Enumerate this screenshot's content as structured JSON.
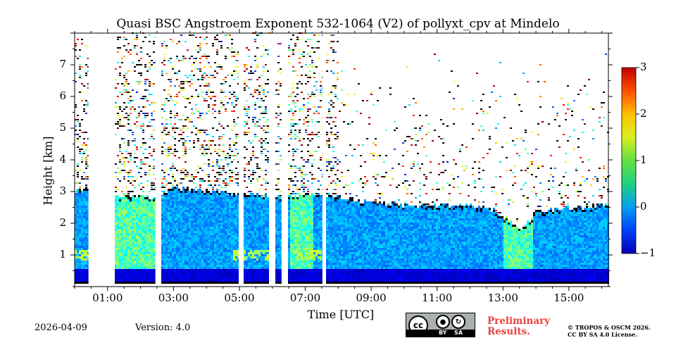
{
  "chart_data": {
    "type": "heatmap",
    "title": "Quasi BSC Angstroem Exponent 532-1064 (V2) of pollyxt_cpv at Mindelo",
    "xlabel": "Time [UTC]",
    "ylabel": "Height [km]",
    "x_range_hours": [
      0.0,
      16.2
    ],
    "ylim_km": [
      0.0,
      8.0
    ],
    "x_ticks": [
      {
        "hour": 1,
        "label": "01:00"
      },
      {
        "hour": 3,
        "label": "03:00"
      },
      {
        "hour": 5,
        "label": "05:00"
      },
      {
        "hour": 7,
        "label": "07:00"
      },
      {
        "hour": 9,
        "label": "09:00"
      },
      {
        "hour": 11,
        "label": "11:00"
      },
      {
        "hour": 13,
        "label": "13:00"
      },
      {
        "hour": 15,
        "label": "15:00"
      }
    ],
    "y_ticks": [
      {
        "km": 1,
        "label": "1"
      },
      {
        "km": 2,
        "label": "2"
      },
      {
        "km": 3,
        "label": "3"
      },
      {
        "km": 4,
        "label": "4"
      },
      {
        "km": 5,
        "label": "5"
      },
      {
        "km": 6,
        "label": "6"
      },
      {
        "km": 7,
        "label": "7"
      }
    ],
    "colorbar": {
      "vmin": -1,
      "vmax": 3,
      "colormap": "jet",
      "ticks": [
        {
          "value": -1,
          "label": "−1"
        },
        {
          "value": 0,
          "label": "0"
        },
        {
          "value": 1,
          "label": "1"
        },
        {
          "value": 2,
          "label": "2"
        },
        {
          "value": 3,
          "label": "3"
        }
      ]
    },
    "gaps_hours": [
      [
        0.42,
        1.18
      ],
      [
        2.45,
        2.62
      ],
      [
        4.98,
        5.08
      ],
      [
        5.9,
        6.05
      ],
      [
        6.28,
        6.47
      ],
      [
        7.52,
        7.58
      ]
    ],
    "boundary_layer_top_km": [
      [
        0.0,
        3.0
      ],
      [
        0.4,
        3.1
      ],
      [
        1.2,
        2.85
      ],
      [
        2.5,
        2.8
      ],
      [
        3.0,
        3.1
      ],
      [
        4.0,
        3.0
      ],
      [
        5.0,
        2.9
      ],
      [
        6.0,
        2.85
      ],
      [
        7.5,
        2.9
      ],
      [
        8.5,
        2.7
      ],
      [
        9.5,
        2.6
      ],
      [
        10.5,
        2.5
      ],
      [
        11.5,
        2.55
      ],
      [
        12.5,
        2.5
      ],
      [
        13.0,
        2.2
      ],
      [
        13.5,
        1.7
      ],
      [
        14.0,
        2.35
      ],
      [
        15.0,
        2.45
      ],
      [
        16.2,
        2.55
      ]
    ]
  },
  "footer": {
    "date": "2026-04-09",
    "version": "Version: 4.0",
    "preliminary_line1": "Preliminary",
    "preliminary_line2": "Results.",
    "copyright_line1": "© TROPOS & OSCM 2026.",
    "copyright_line2": "CC BY SA 4.0 License.",
    "cc_label": "cc",
    "cc_by": "BY",
    "cc_sa": "SA"
  }
}
